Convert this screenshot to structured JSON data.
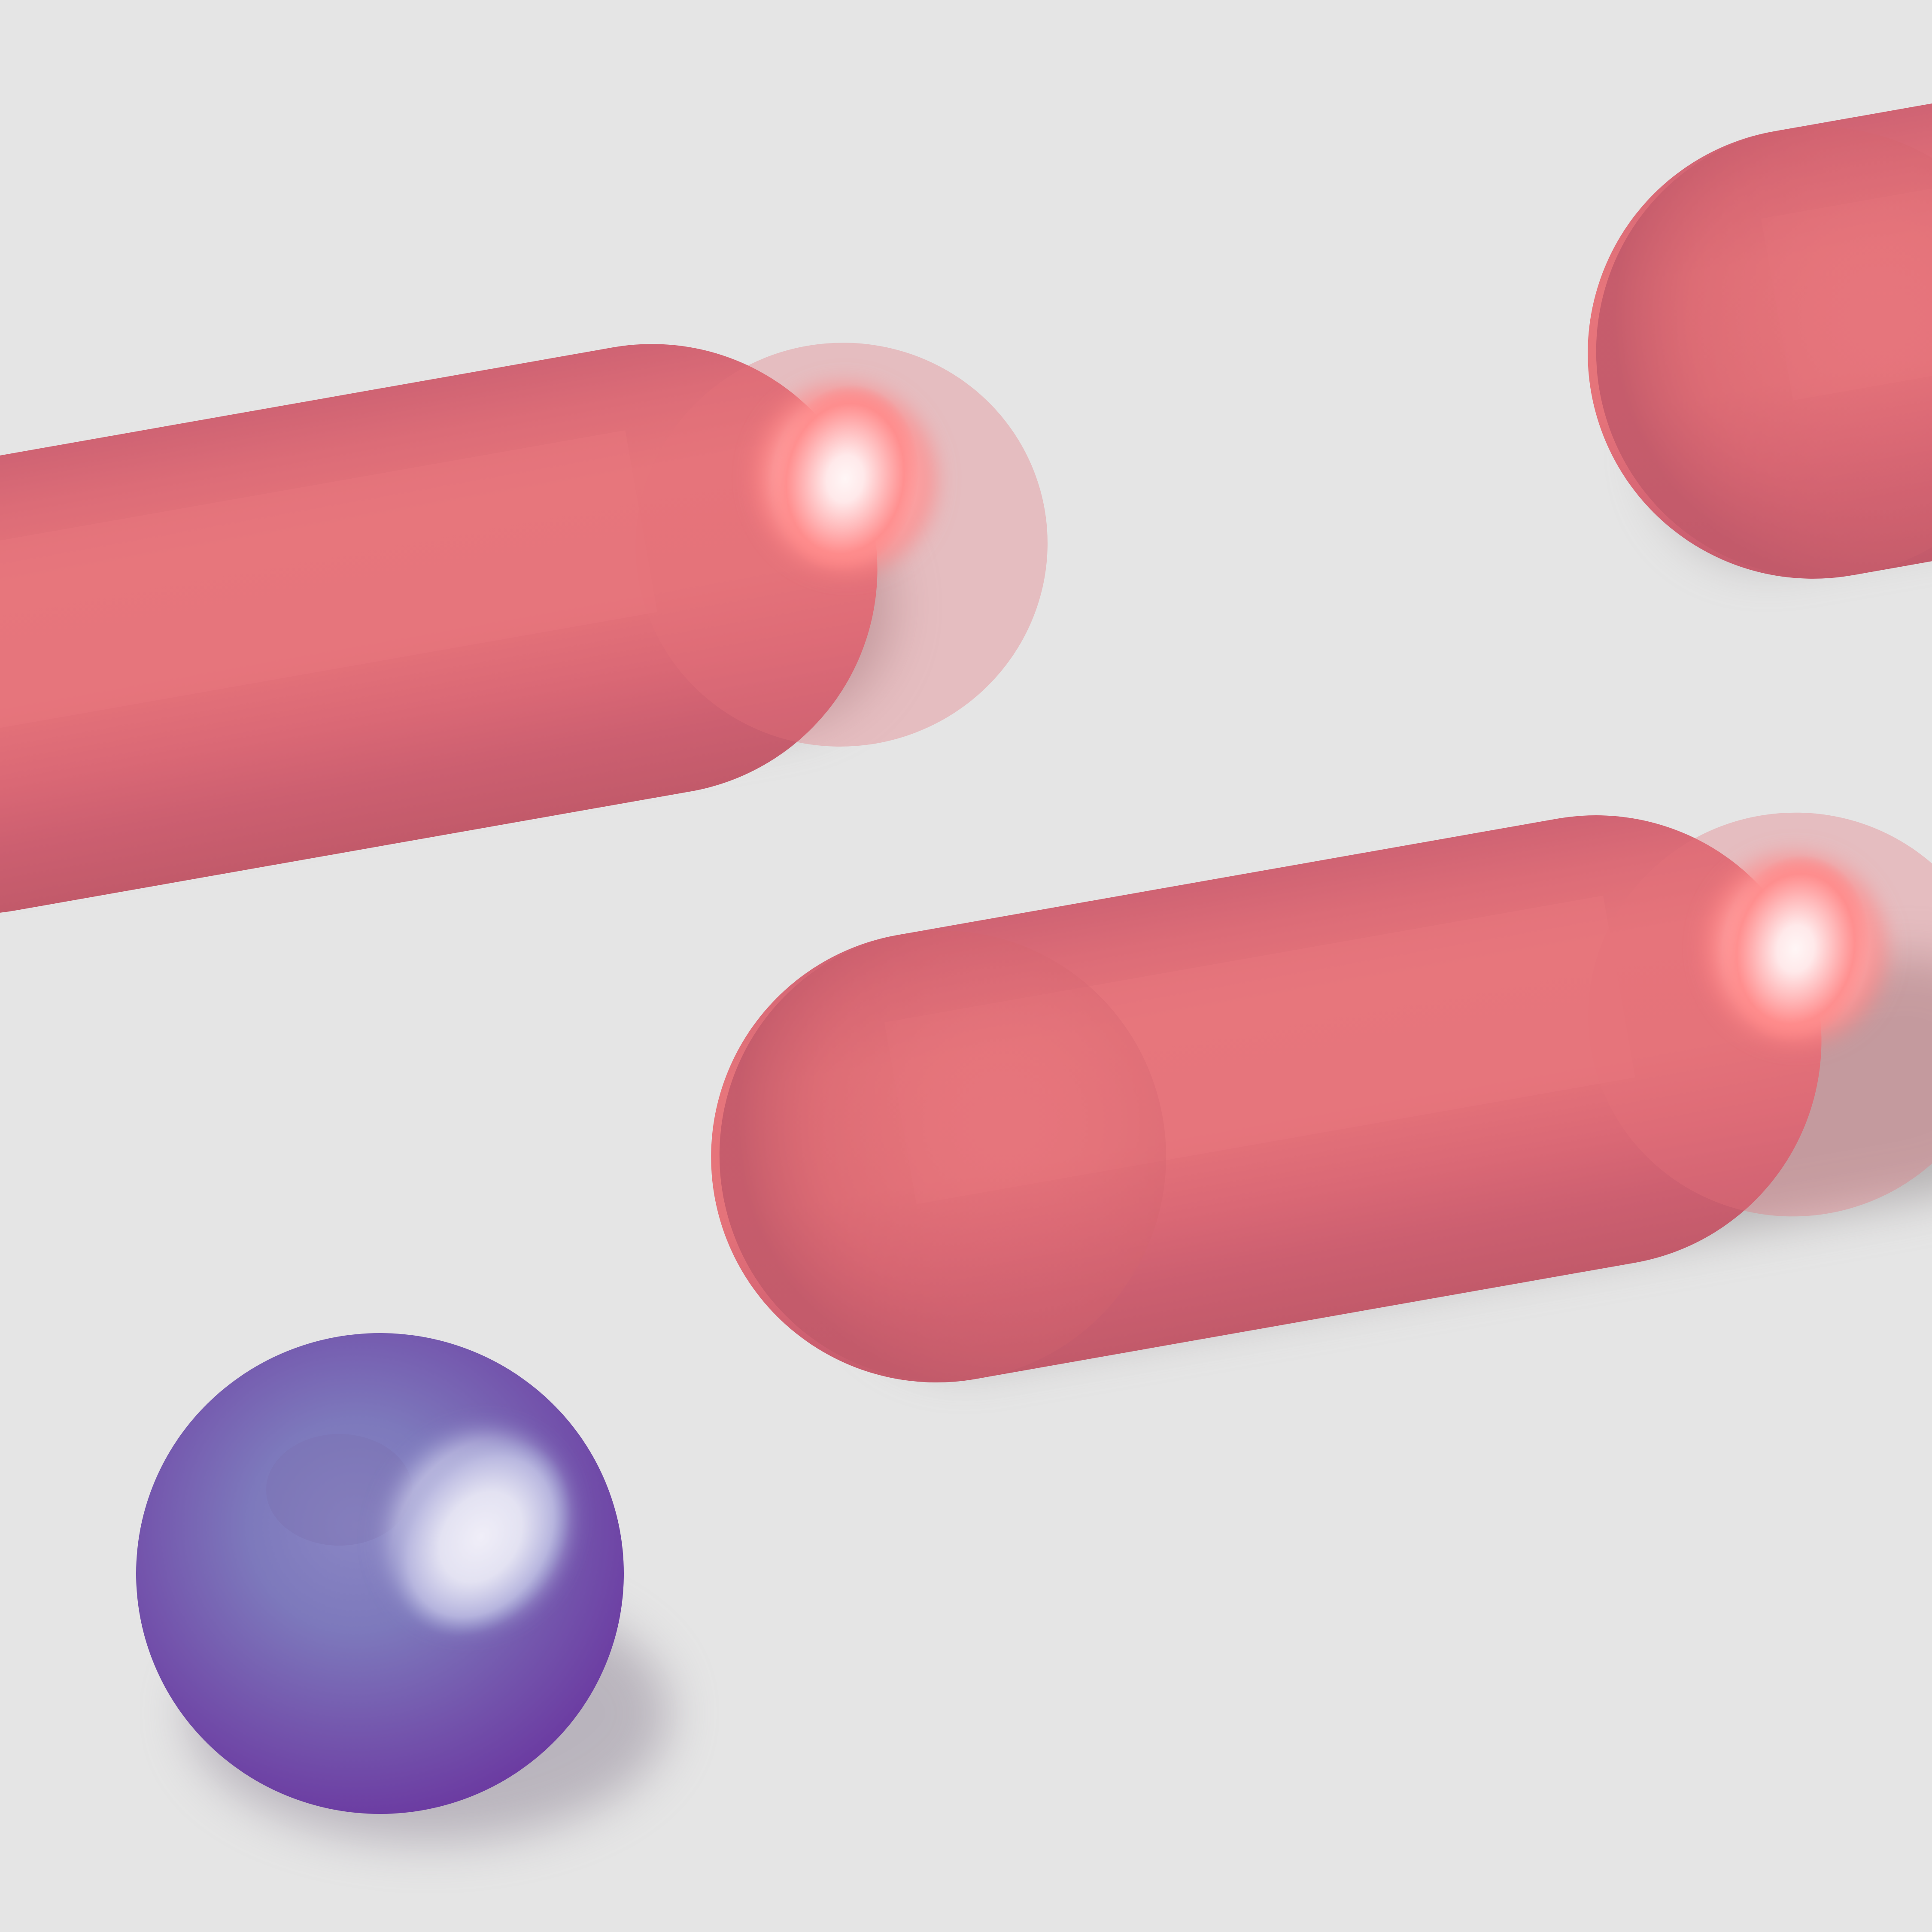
{
  "scene": {
    "background_color": "#e5e5e5",
    "objects": [
      {
        "kind": "capsule",
        "color_name": "pink-red",
        "base_color": "#e5737a",
        "dark_color": "#c25a6a",
        "highlight_color": "#fff4f4"
      },
      {
        "kind": "capsule",
        "color_name": "pink-red",
        "base_color": "#e5737a",
        "dark_color": "#c25a6a",
        "highlight_color": "#fff4f4"
      },
      {
        "kind": "capsule",
        "color_name": "pink-red",
        "base_color": "#e5737a",
        "dark_color": "#c25a6a",
        "highlight_color": "#fff4f4"
      },
      {
        "kind": "sphere",
        "color_name": "purple",
        "base_color": "#7a6fb5",
        "dark_color": "#6f3fa4",
        "highlight_color": "#eceaf6"
      }
    ]
  }
}
